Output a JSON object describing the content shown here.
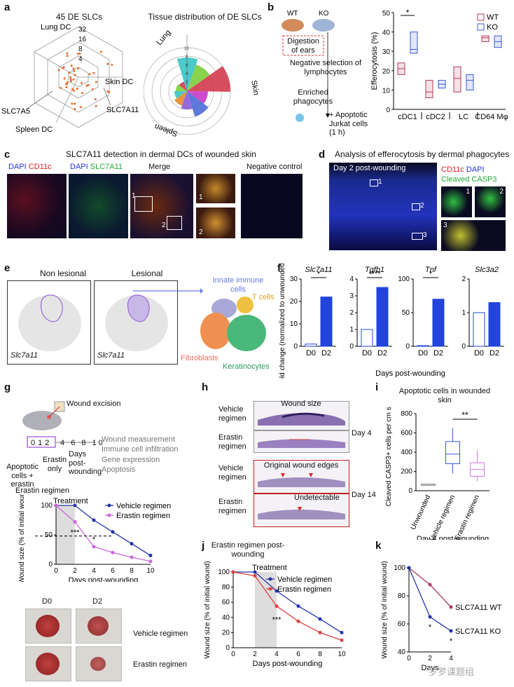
{
  "panel_labels": {
    "a": "a",
    "b": "b",
    "c": "c",
    "d": "d",
    "e": "e",
    "f": "f",
    "g": "g",
    "h": "h",
    "i": "i",
    "j": "j",
    "k": "k"
  },
  "a": {
    "radar_title": "45 DE SLCs",
    "radar_axes": [
      "Lung DC",
      "Skin DC",
      "Spleen DC"
    ],
    "radar_ticks": [
      "32",
      "16",
      "8",
      "4"
    ],
    "radar_callouts": [
      "SLC7A5",
      "SLC7A11"
    ],
    "rose_title": "Tissue distribution of DE SLCs",
    "rose_labels": [
      "Lung",
      "Skin",
      "Spleen"
    ],
    "rose_ticks": [
      "10",
      "8",
      "6",
      "4",
      "2"
    ],
    "rose_colors": [
      "#3ac4c4",
      "#7ccf3a",
      "#d13a4e",
      "#c93ac9",
      "#4a6ad8",
      "#8a5ad8",
      "#e88a2a"
    ]
  },
  "b": {
    "wt_label": "WT",
    "ko_label": "KO",
    "step1": "Digestion of ears",
    "step2": "Negative selection of lymphocytes",
    "step3": "Enriched phagocytes",
    "step4": "+ Apoptotic Jurkat cells (1 h)",
    "sig": "*",
    "chart_data": {
      "type": "box",
      "title": "",
      "ylabel": "Efferocytosis (%)",
      "ylim": [
        0,
        50
      ],
      "yticks": [
        "0",
        "10",
        "20",
        "30",
        "40",
        "50"
      ],
      "groups": [
        "cDC1",
        "cDC2",
        "LC",
        "CD64 Mφ"
      ],
      "series": [
        {
          "name": "WT",
          "color": "#b03a5a",
          "box": [
            [
              18,
              21,
              24
            ],
            [
              6,
              9,
              15
            ],
            [
              9,
              16,
              22
            ],
            [
              35,
              37,
              38
            ]
          ]
        },
        {
          "name": "KO",
          "color": "#3a5ad8",
          "box": [
            [
              29,
              31,
              40
            ],
            [
              11,
              13,
              15
            ],
            [
              10,
              15,
              18
            ],
            [
              32,
              35,
              38
            ]
          ]
        }
      ]
    }
  },
  "c": {
    "title": "SLC7A11 detection in dermal DCs of wounded skin",
    "ch1_a": "DAPI",
    "ch1_b": "CD11c",
    "ch2_a": "DAPI",
    "ch2_b": "SLC7A11",
    "merge": "Merge",
    "neg": "Negative control",
    "inset1": "1",
    "inset2": "2"
  },
  "d": {
    "title": "Analysis of efferocytosis by dermal phagocytes",
    "day": "Day 2 post-wounding",
    "legend_a": "CD11c",
    "legend_b": "DAPI",
    "legend_c": "Cleaved CASP3",
    "insets": [
      "1",
      "2",
      "3"
    ]
  },
  "e": {
    "nonlesional": "Non lesional",
    "lesional": "Lesional",
    "gene": "Slc7a11",
    "clusters": [
      "Innate immune cells",
      "T cells",
      "Fibroblasts",
      "Keratinocytes"
    ]
  },
  "f": {
    "ylabel": "Fold change (normalized to unwounded skin)",
    "xlabel": "Days post-wounding",
    "chart_data": [
      {
        "type": "bar",
        "title": "Slc7a11",
        "categories": [
          "D0",
          "D2"
        ],
        "values": [
          1,
          22
        ],
        "ylim": [
          0,
          30
        ],
        "yticks": [
          "0",
          "10",
          "20",
          "30"
        ],
        "sig": "*"
      },
      {
        "type": "bar",
        "title": "Tgfb1",
        "categories": [
          "D0",
          "D2"
        ],
        "values": [
          1,
          3.5
        ],
        "ylim": [
          0,
          4
        ],
        "yticks": [
          "0",
          "1",
          "2",
          "3",
          "4"
        ],
        "sig": "****"
      },
      {
        "type": "bar",
        "title": "Tnf",
        "categories": [
          "D0",
          "D2"
        ],
        "values": [
          1,
          70
        ],
        "ylim": [
          0,
          100
        ],
        "yticks": [
          "0",
          "50",
          "100"
        ],
        "sig": "*"
      },
      {
        "type": "bar",
        "title": "Slc3a2",
        "categories": [
          "D0",
          "D2"
        ],
        "values": [
          1,
          1.3
        ],
        "ylim": [
          0,
          2
        ],
        "yticks": [
          "0",
          "1",
          "2"
        ],
        "sig": ""
      }
    ]
  },
  "g": {
    "wound_excision": "Wound excision",
    "readouts": [
      "Wound measurement",
      "Immune cell infiltration",
      "Gene expression",
      "Apoptosis"
    ],
    "days": [
      "0",
      "1",
      "2",
      "4",
      "6",
      "8",
      "10"
    ],
    "days_label": "Days post-wounding",
    "apoptotic": "Apoptotic cells + erastin",
    "erastin_only": "Erastin only",
    "regimen": "Erastin regimen",
    "treatment": "Treatment",
    "chart_data": {
      "type": "line",
      "title": "",
      "xlabel": "Days post-wounding",
      "ylabel": "Wound size (% of initial wound)",
      "x": [
        0,
        2,
        4,
        6,
        8,
        10
      ],
      "ylim": [
        0,
        100
      ],
      "yticks": [
        "0",
        "50",
        "100"
      ],
      "sig": [
        "***",
        "*"
      ],
      "series": [
        {
          "name": "Vehicle regimen",
          "color": "#2233aa",
          "values": [
            100,
            100,
            75,
            55,
            35,
            15
          ]
        },
        {
          "name": "Erastin regimen",
          "color": "#cc66dd",
          "values": [
            100,
            72,
            30,
            20,
            12,
            5
          ]
        }
      ]
    },
    "photo_labels": [
      "D0",
      "D2"
    ],
    "photo_rows": [
      "Vehicle regimen",
      "Erastin regimen"
    ]
  },
  "h": {
    "rows": [
      "Vehicle regimen",
      "Erastin regimen",
      "Vehicle regimen",
      "Erastin regimen"
    ],
    "wound_size": "Wound size",
    "day4": "Day 4",
    "day14": "Day 14",
    "orig_edges": "Original wound edges",
    "undetectable": "Undetectable"
  },
  "i": {
    "title": "Apoptotic cells in wounded skin",
    "xlabel": "Day 4 post-wounding",
    "sig": "**",
    "chart_data": {
      "type": "box",
      "title": "",
      "ylabel": "Cleaved CASP3+ cells per cm skin",
      "ylim": [
        0,
        800
      ],
      "yticks": [
        "0",
        "200",
        "400",
        "600",
        "800"
      ],
      "categories": [
        "Unwounded",
        "Vehicle regimen",
        "Erastin regimen"
      ],
      "colors": [
        "#999999",
        "#3a5ad8",
        "#d17ae0"
      ],
      "box": [
        [
          55,
          60,
          70
        ],
        [
          280,
          380,
          510
        ],
        [
          150,
          220,
          290
        ]
      ],
      "whisker": [
        [
          50,
          75
        ],
        [
          180,
          650
        ],
        [
          100,
          420
        ]
      ]
    }
  },
  "j": {
    "title": "Erastin regimen post-wounding",
    "treatment": "Treatment",
    "chart_data": {
      "type": "line",
      "title": "",
      "xlabel": "Days post-wounding",
      "ylabel": "Wound size (% of initial wound)",
      "x": [
        0,
        2,
        4,
        6,
        8,
        10
      ],
      "ylim": [
        0,
        100
      ],
      "yticks": [
        "0",
        "20",
        "40",
        "60",
        "80",
        "100"
      ],
      "sig": [
        "***"
      ],
      "series": [
        {
          "name": "Vehicle regimen",
          "color": "#2233aa",
          "values": [
            100,
            100,
            75,
            55,
            38,
            20
          ]
        },
        {
          "name": "Erastin regimen",
          "color": "#e04040",
          "values": [
            100,
            95,
            55,
            35,
            20,
            10
          ]
        }
      ]
    }
  },
  "k": {
    "chart_data": {
      "type": "line",
      "title": "",
      "xlabel": "Days",
      "ylabel": "Wound size (% of initial wound)",
      "x": [
        0,
        2,
        4
      ],
      "ylim": [
        40,
        100
      ],
      "yticks": [
        "40",
        "60",
        "80",
        "100"
      ],
      "sig": [
        "*",
        "*"
      ],
      "series": [
        {
          "name": "SLC7A11 WT",
          "color": "#b03a5a",
          "values": [
            100,
            88,
            72
          ]
        },
        {
          "name": "SLC7A11 KO",
          "color": "#2233aa",
          "values": [
            100,
            65,
            55
          ]
        }
      ]
    },
    "watermark": "罗罗课题组"
  }
}
